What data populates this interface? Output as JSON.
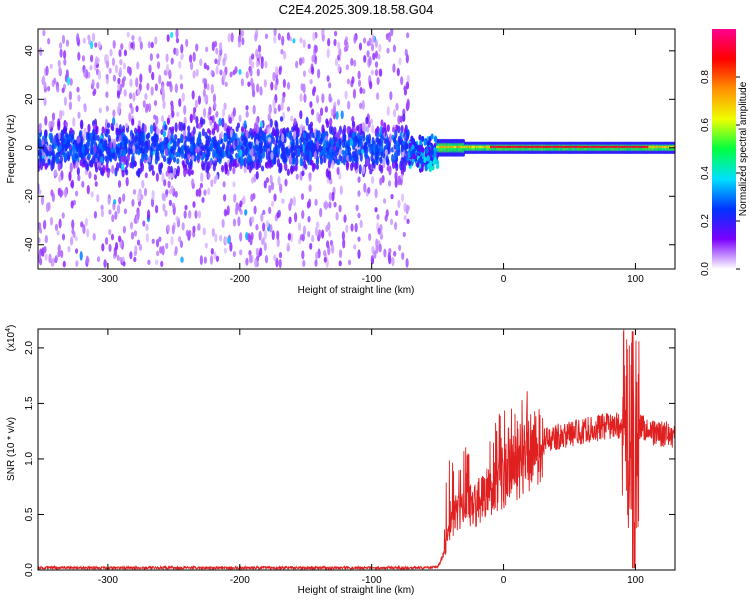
{
  "title": "C2E4.2025.309.18.58.G04",
  "colorbar": {
    "label": "Normalized spectral amplitude",
    "ticks": [
      "0.0",
      "0.2",
      "0.4",
      "0.6",
      "0.8"
    ],
    "tick_values": [
      0.0,
      0.2,
      0.4,
      0.6,
      0.8
    ],
    "range": [
      0,
      1
    ],
    "colormap": [
      "#ffffff",
      "#7a00ff",
      "#0033ff",
      "#00e0ff",
      "#00ff40",
      "#f0ff00",
      "#ff9000",
      "#ff0000",
      "#ff0090"
    ]
  },
  "chart_data": [
    {
      "type": "heatmap",
      "xlabel": "Height of straight line (km)",
      "ylabel": "Frequency (Hz)",
      "xlim": [
        -353,
        130
      ],
      "ylim": [
        -50,
        49
      ],
      "xticks": [
        "-300",
        "-200",
        "-100",
        "0",
        "100"
      ],
      "xtick_values": [
        -300,
        -200,
        -100,
        0,
        100
      ],
      "yticks": [
        "-40",
        "-20",
        "0",
        "20",
        "40"
      ],
      "ytick_values": [
        -40,
        -20,
        0,
        20,
        40
      ],
      "regions": [
        {
          "x": [
            -353,
            -72
          ],
          "spread_hz": 48,
          "core_hz": [
            -10,
            10
          ],
          "peak_amplitude": 0.3
        },
        {
          "x": [
            -72,
            -50
          ],
          "spread_hz": 10,
          "core_hz": [
            -8,
            6
          ],
          "peak_amplitude": 0.5
        },
        {
          "x": [
            -50,
            130
          ],
          "spread_hz": 3,
          "core_hz": [
            -1,
            1
          ],
          "peak_amplitude": 0.95
        }
      ]
    },
    {
      "type": "line",
      "xlabel": "Height of straight line (km)",
      "ylabel": "SNR (10 * v/v)",
      "yscale_label": "(x10",
      "yscale_exp": "4",
      "xlim": [
        -353,
        130
      ],
      "ylim": [
        0,
        2.17
      ],
      "xticks": [
        "-300",
        "-200",
        "-100",
        "0",
        "100"
      ],
      "xtick_values": [
        -300,
        -200,
        -100,
        0,
        100
      ],
      "yticks": [
        "0.0",
        "0.5",
        "1.0",
        "1.5",
        "2.0"
      ],
      "ytick_values": [
        0.0,
        0.5,
        1.0,
        1.5,
        2.0
      ],
      "color": "#e02020",
      "x": [
        -353,
        -300,
        -250,
        -200,
        -150,
        -100,
        -60,
        -50,
        -45,
        -40,
        -30,
        -20,
        -10,
        0,
        10,
        20,
        30,
        40,
        60,
        80,
        90,
        95,
        100,
        105,
        110,
        120,
        130
      ],
      "y": [
        0.02,
        0.02,
        0.02,
        0.02,
        0.02,
        0.02,
        0.02,
        0.03,
        0.15,
        0.45,
        0.55,
        0.6,
        0.75,
        0.85,
        0.95,
        1.05,
        1.15,
        1.2,
        1.25,
        1.3,
        1.3,
        1.2,
        1.25,
        1.3,
        1.25,
        1.22,
        1.22
      ]
    }
  ]
}
